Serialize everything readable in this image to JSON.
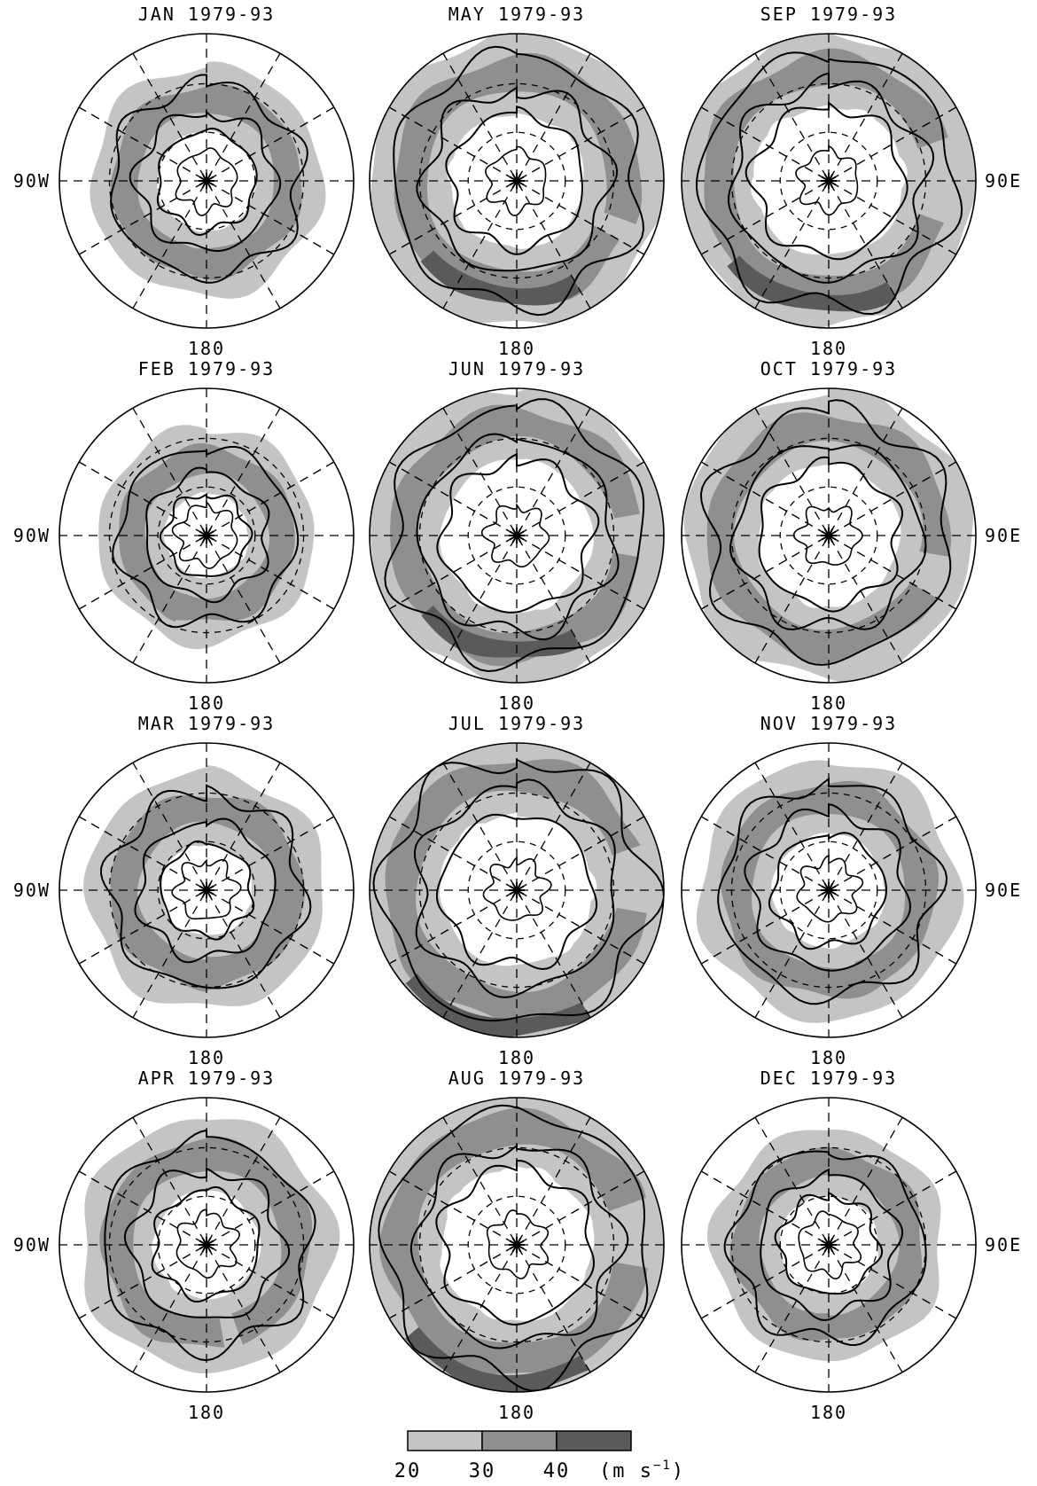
{
  "panels": [
    {
      "title": "JAN 1979-93",
      "bottom": "180",
      "right": "",
      "left": "90W",
      "jet": {
        "ring": 0.55,
        "width": 0.18,
        "start": 190,
        "end": 560,
        "core": 0.55
      }
    },
    {
      "title": "MAY 1979-93",
      "bottom": "180",
      "right": "",
      "left": "",
      "jet": {
        "ring": 0.72,
        "width": 0.22,
        "start": 120,
        "end": 470,
        "core": 0.8
      }
    },
    {
      "title": "SEP 1979-93",
      "bottom": "180",
      "right": "90E",
      "left": "",
      "jet": {
        "ring": 0.75,
        "width": 0.2,
        "start": 110,
        "end": 430,
        "core": 0.85
      }
    },
    {
      "title": "FEB 1979-93",
      "bottom": "180",
      "right": "",
      "left": "90W",
      "jet": {
        "ring": 0.5,
        "width": 0.18,
        "start": 200,
        "end": 560,
        "core": 0.5
      }
    },
    {
      "title": "JUN 1979-93",
      "bottom": "180",
      "right": "",
      "left": "",
      "jet": {
        "ring": 0.75,
        "width": 0.2,
        "start": 100,
        "end": 440,
        "core": 0.8
      }
    },
    {
      "title": "OCT 1979-93",
      "bottom": "180",
      "right": "90E",
      "left": "",
      "jet": {
        "ring": 0.72,
        "width": 0.2,
        "start": 120,
        "end": 460,
        "core": 0.7
      }
    },
    {
      "title": "MAR 1979-93",
      "bottom": "180",
      "right": "",
      "left": "90W",
      "jet": {
        "ring": 0.55,
        "width": 0.2,
        "start": 180,
        "end": 540,
        "core": 0.6
      }
    },
    {
      "title": "JUL 1979-93",
      "bottom": "180",
      "right": "",
      "left": "",
      "jet": {
        "ring": 0.78,
        "width": 0.22,
        "start": 100,
        "end": 430,
        "core": 0.95
      }
    },
    {
      "title": "NOV 1979-93",
      "bottom": "180",
      "right": "90E",
      "left": "",
      "jet": {
        "ring": 0.62,
        "width": 0.2,
        "start": 150,
        "end": 520,
        "core": 0.65
      }
    },
    {
      "title": "APR 1979-93",
      "bottom": "180",
      "right": "",
      "left": "90W",
      "jet": {
        "ring": 0.6,
        "width": 0.2,
        "start": 170,
        "end": 520,
        "core": 0.6
      }
    },
    {
      "title": "AUG 1979-93",
      "bottom": "180",
      "right": "",
      "left": "",
      "jet": {
        "ring": 0.78,
        "width": 0.22,
        "start": 100,
        "end": 430,
        "core": 0.95
      }
    },
    {
      "title": "DEC 1979-93",
      "bottom": "180",
      "right": "90E",
      "left": "",
      "jet": {
        "ring": 0.55,
        "width": 0.18,
        "start": 180,
        "end": 560,
        "core": 0.6
      }
    }
  ],
  "colorbar": {
    "levels": [
      "20",
      "30",
      "40"
    ],
    "unit_label": "(m s",
    "unit_exp": "−1",
    "unit_close": ")",
    "colors": [
      "#c4c4c4",
      "#8f8f8f",
      "#5a5a5a"
    ]
  },
  "colors": {
    "light": "#c4c4c4",
    "medium": "#8f8f8f",
    "dark": "#5a5a5a",
    "line": "#000000"
  }
}
